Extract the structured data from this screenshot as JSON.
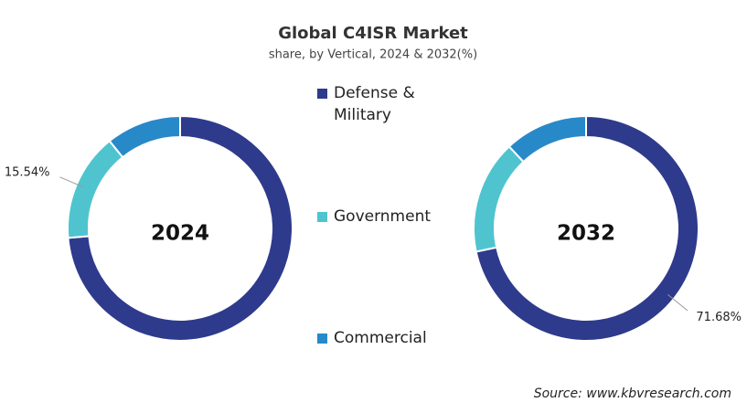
{
  "chart_data": [
    {
      "type": "donut",
      "title": "Global C4ISR Market",
      "subtitle": "share, by Vertical, 2024 & 2032(%)",
      "label": "2024",
      "categories": [
        "Defense & Military",
        "Government",
        "Commercial"
      ],
      "colors": [
        "#2e3a8c",
        "#4fc4cf",
        "#2889c9"
      ],
      "values": [
        73.66,
        15.54,
        10.8
      ],
      "value_labels": [
        null,
        "15.54%",
        null
      ]
    },
    {
      "type": "donut",
      "label": "2032",
      "categories": [
        "Defense & Military",
        "Government",
        "Commercial"
      ],
      "colors": [
        "#2e3a8c",
        "#4fc4cf",
        "#2889c9"
      ],
      "values": [
        71.68,
        16.32,
        12
      ],
      "value_labels": [
        "71.68%",
        null,
        null
      ]
    }
  ],
  "source": "Source: www.kbvresearch.com"
}
